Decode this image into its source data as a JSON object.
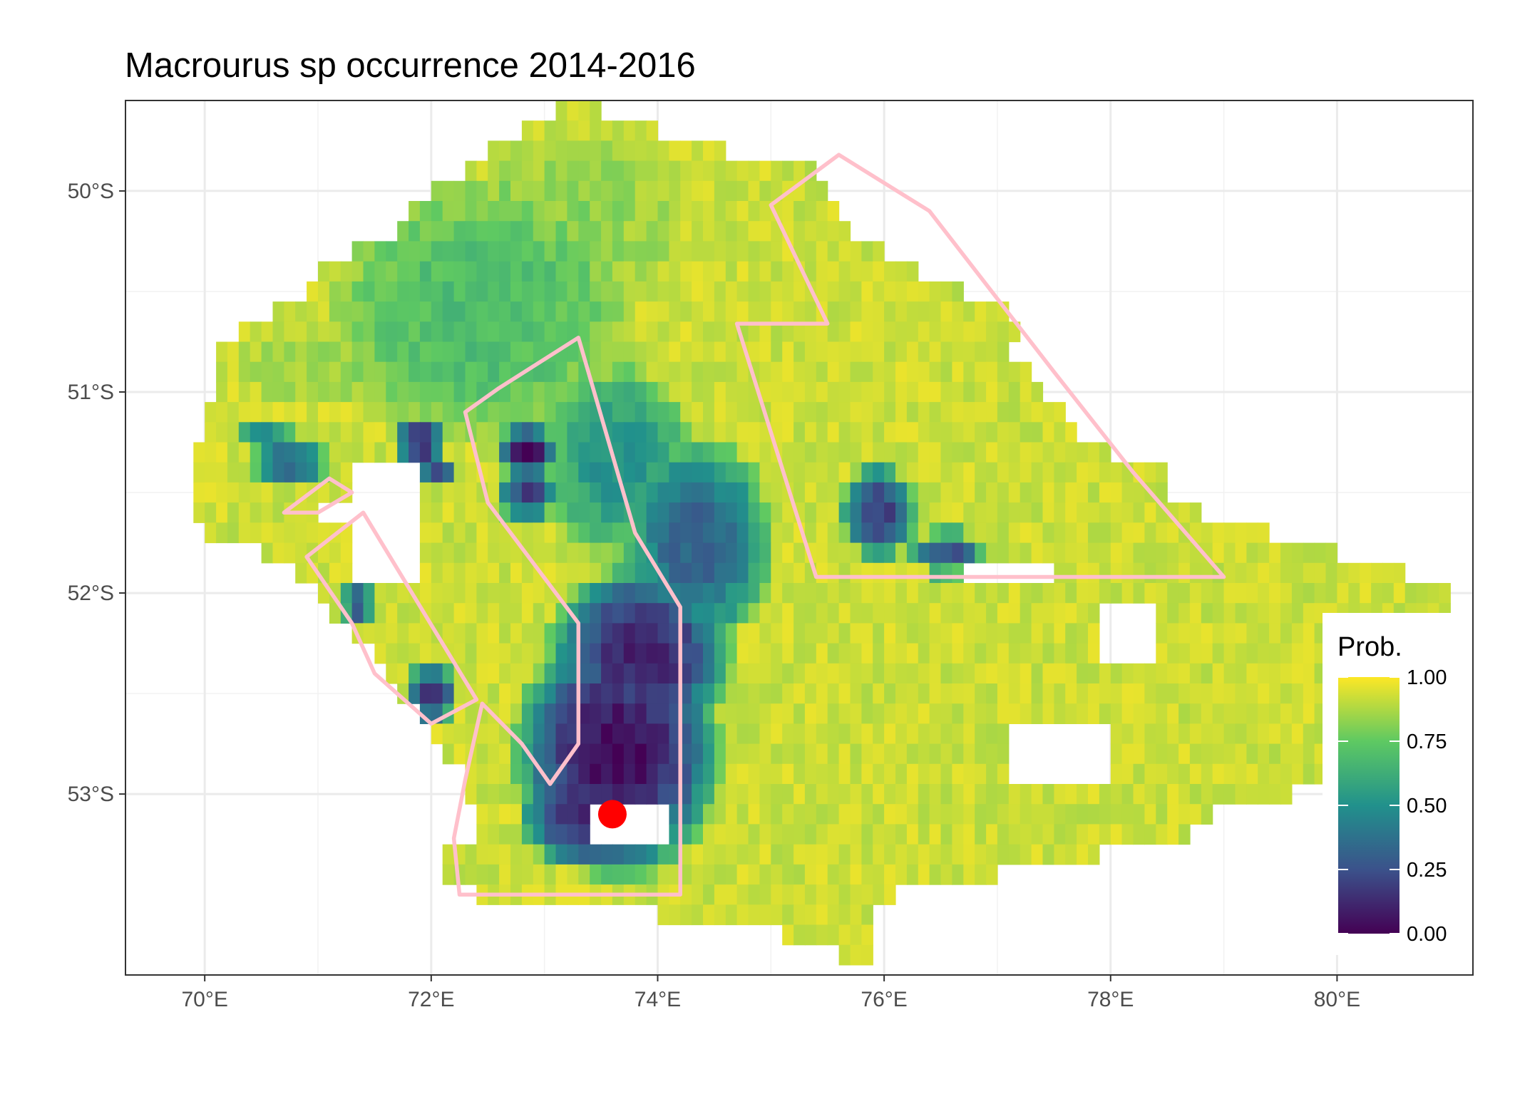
{
  "chart_data": {
    "type": "heatmap",
    "title": "Macrourus sp  occurrence 2014-2016",
    "xlabel": "",
    "ylabel": "",
    "xlim": [
      69.3,
      81.2
    ],
    "ylim": [
      -53.9,
      -49.55
    ],
    "x_ticks": [
      {
        "value": 70,
        "label": "70°E"
      },
      {
        "value": 72,
        "label": "72°E"
      },
      {
        "value": 74,
        "label": "74°E"
      },
      {
        "value": 76,
        "label": "76°E"
      },
      {
        "value": 78,
        "label": "78°E"
      },
      {
        "value": 80,
        "label": "80°E"
      }
    ],
    "y_ticks": [
      {
        "value": -50,
        "label": "50°S"
      },
      {
        "value": -51,
        "label": "51°S"
      },
      {
        "value": -52,
        "label": "52°S"
      },
      {
        "value": -53,
        "label": "53°S"
      }
    ],
    "grid": true,
    "legend": {
      "title": "Prob.",
      "placement": "right-inset",
      "breaks": [
        {
          "value": 1.0,
          "label": "1.00"
        },
        {
          "value": 0.75,
          "label": "0.75"
        },
        {
          "value": 0.5,
          "label": "0.50"
        },
        {
          "value": 0.25,
          "label": "0.25"
        },
        {
          "value": 0.0,
          "label": "0.00"
        }
      ]
    },
    "colormap": [
      "#440154",
      "#3b528b",
      "#21918c",
      "#5ec962",
      "#fde725"
    ],
    "cell_size": 0.1,
    "background_prob": 0.92,
    "domain_rows": [
      {
        "lat": -49.55,
        "lon": [
          73.0,
          73.4
        ]
      },
      {
        "lat": -49.7,
        "lon": [
          72.6,
          74.2
        ]
      },
      {
        "lat": -49.85,
        "lon": [
          72.2,
          75.3
        ]
      },
      {
        "lat": -50.0,
        "lon": [
          71.8,
          75.5
        ]
      },
      {
        "lat": -50.15,
        "lon": [
          71.6,
          75.6
        ]
      },
      {
        "lat": -50.3,
        "lon": [
          71.0,
          76.1
        ]
      },
      {
        "lat": -50.45,
        "lon": [
          70.8,
          76.6
        ]
      },
      {
        "lat": -50.6,
        "lon": [
          70.4,
          77.2
        ]
      },
      {
        "lat": -50.75,
        "lon": [
          70.0,
          77.0
        ]
      },
      {
        "lat": -50.9,
        "lon": [
          70.1,
          77.3
        ]
      },
      {
        "lat": -51.05,
        "lon": [
          69.9,
          77.5
        ]
      },
      {
        "lat": -51.2,
        "lon": [
          69.9,
          77.7
        ]
      },
      {
        "lat": -51.35,
        "lon": [
          69.8,
          78.4
        ]
      },
      {
        "lat": -51.5,
        "lon": [
          69.8,
          78.5
        ]
      },
      {
        "lat": -51.65,
        "lon": [
          69.9,
          79.3
        ]
      },
      {
        "lat": -51.8,
        "lon": [
          70.7,
          80.3
        ]
      },
      {
        "lat": -51.95,
        "lon": [
          70.9,
          80.9
        ]
      },
      {
        "lat": -52.1,
        "lon": [
          71.1,
          81.0
        ]
      },
      {
        "lat": -52.25,
        "lon": [
          71.4,
          81.2
        ]
      },
      {
        "lat": -52.4,
        "lon": [
          71.6,
          81.2
        ]
      },
      {
        "lat": -52.55,
        "lon": [
          71.8,
          80.6
        ]
      },
      {
        "lat": -52.7,
        "lon": [
          72.0,
          80.8
        ]
      },
      {
        "lat": -52.85,
        "lon": [
          72.2,
          80.6
        ]
      },
      {
        "lat": -53.0,
        "lon": [
          72.3,
          79.0
        ]
      },
      {
        "lat": -53.15,
        "lon": [
          72.3,
          78.6
        ]
      },
      {
        "lat": -53.3,
        "lon": [
          71.9,
          77.4
        ]
      },
      {
        "lat": -53.45,
        "lon": [
          72.3,
          76.0
        ]
      },
      {
        "lat": -53.6,
        "lon": [
          74.8,
          75.8
        ]
      },
      {
        "lat": -53.75,
        "lon": [
          75.5,
          75.8
        ]
      }
    ],
    "gaps": [
      {
        "lon": [
          71.2,
          71.8
        ],
        "lat": [
          -51.9,
          -51.3
        ]
      },
      {
        "lon": [
          70.9,
          71.3
        ],
        "lat": [
          -51.65,
          -51.5
        ]
      },
      {
        "lon": [
          77.0,
          77.9
        ],
        "lat": [
          -52.95,
          -52.6
        ]
      },
      {
        "lon": [
          76.6,
          77.4
        ],
        "lat": [
          -51.9,
          -51.8
        ]
      },
      {
        "lon": [
          77.8,
          78.3
        ],
        "lat": [
          -52.3,
          -52.05
        ]
      },
      {
        "lon": [
          73.3,
          74.0
        ],
        "lat": [
          -53.2,
          -53.05
        ]
      }
    ],
    "low_zones": [
      {
        "lon": 73.6,
        "lat": -52.75,
        "rx": 0.95,
        "ry": 0.65,
        "value": 0.02
      },
      {
        "lon": 73.8,
        "lat": -52.25,
        "rx": 0.85,
        "ry": 0.45,
        "value": 0.08
      },
      {
        "lon": 73.4,
        "lat": -53.05,
        "rx": 0.7,
        "ry": 0.3,
        "value": 0.05
      },
      {
        "lon": 74.3,
        "lat": -51.7,
        "rx": 0.7,
        "ry": 0.55,
        "value": 0.3
      },
      {
        "lon": 73.6,
        "lat": -51.3,
        "rx": 0.7,
        "ry": 0.5,
        "value": 0.5
      },
      {
        "lon": 72.8,
        "lat": -51.25,
        "rx": 0.3,
        "ry": 0.15,
        "value": 0.05
      },
      {
        "lon": 72.8,
        "lat": -51.45,
        "rx": 0.3,
        "ry": 0.15,
        "value": 0.2
      },
      {
        "lon": 71.85,
        "lat": -51.2,
        "rx": 0.25,
        "ry": 0.1,
        "value": 0.03
      },
      {
        "lon": 72.0,
        "lat": -51.35,
        "rx": 0.2,
        "ry": 0.1,
        "value": 0.25
      },
      {
        "lon": 70.7,
        "lat": -51.3,
        "rx": 0.35,
        "ry": 0.15,
        "value": 0.3
      },
      {
        "lon": 70.5,
        "lat": -51.15,
        "rx": 0.3,
        "ry": 0.1,
        "value": 0.5
      },
      {
        "lon": 71.3,
        "lat": -52.0,
        "rx": 0.15,
        "ry": 0.1,
        "value": 0.2
      },
      {
        "lon": 71.95,
        "lat": -52.45,
        "rx": 0.25,
        "ry": 0.15,
        "value": 0.12
      },
      {
        "lon": 75.9,
        "lat": -51.55,
        "rx": 0.35,
        "ry": 0.25,
        "value": 0.18
      },
      {
        "lon": 76.5,
        "lat": -51.75,
        "rx": 0.35,
        "ry": 0.12,
        "value": 0.25
      },
      {
        "lon": 72.4,
        "lat": -50.55,
        "rx": 1.4,
        "ry": 0.7,
        "value": 0.68
      },
      {
        "lon": 73.2,
        "lat": -50.1,
        "rx": 1.0,
        "ry": 0.45,
        "value": 0.82
      },
      {
        "lon": 71.0,
        "lat": -50.8,
        "rx": 0.8,
        "ry": 0.25,
        "value": 0.86
      }
    ],
    "polygons": [
      {
        "name": "box-east",
        "color": "#ffc0cb",
        "points": [
          [
            75.0,
            -50.07
          ],
          [
            75.6,
            -49.82
          ],
          [
            76.4,
            -50.1
          ],
          [
            77.5,
            -50.9
          ],
          [
            78.2,
            -51.4
          ],
          [
            79.0,
            -51.92
          ],
          [
            75.4,
            -51.92
          ],
          [
            74.7,
            -50.66
          ],
          [
            75.5,
            -50.66
          ]
        ]
      },
      {
        "name": "box-north",
        "color": "#ffc0cb",
        "points": [
          [
            72.3,
            -51.1
          ],
          [
            72.6,
            -50.98
          ],
          [
            73.3,
            -50.73
          ],
          [
            73.8,
            -51.7
          ],
          [
            74.2,
            -52.07
          ],
          [
            74.2,
            -53.5
          ],
          [
            72.25,
            -53.5
          ],
          [
            72.2,
            -53.22
          ],
          [
            72.3,
            -52.93
          ],
          [
            72.45,
            -52.55
          ],
          [
            72.8,
            -52.75
          ],
          [
            73.05,
            -52.95
          ],
          [
            73.3,
            -52.75
          ],
          [
            73.3,
            -52.15
          ],
          [
            72.5,
            -51.55
          ]
        ]
      },
      {
        "name": "box-west",
        "color": "#ffc0cb",
        "points": [
          [
            70.9,
            -51.82
          ],
          [
            71.4,
            -51.6
          ],
          [
            72.4,
            -52.53
          ],
          [
            72.0,
            -52.65
          ],
          [
            71.5,
            -52.4
          ],
          [
            71.3,
            -52.15
          ]
        ]
      },
      {
        "name": "box-small",
        "color": "#ffc0cb",
        "points": [
          [
            70.7,
            -51.6
          ],
          [
            71.1,
            -51.43
          ],
          [
            71.3,
            -51.5
          ],
          [
            71.0,
            -51.6
          ]
        ]
      }
    ],
    "points": [
      {
        "lon": 73.6,
        "lat": -53.1,
        "color": "#ff0000"
      }
    ]
  }
}
